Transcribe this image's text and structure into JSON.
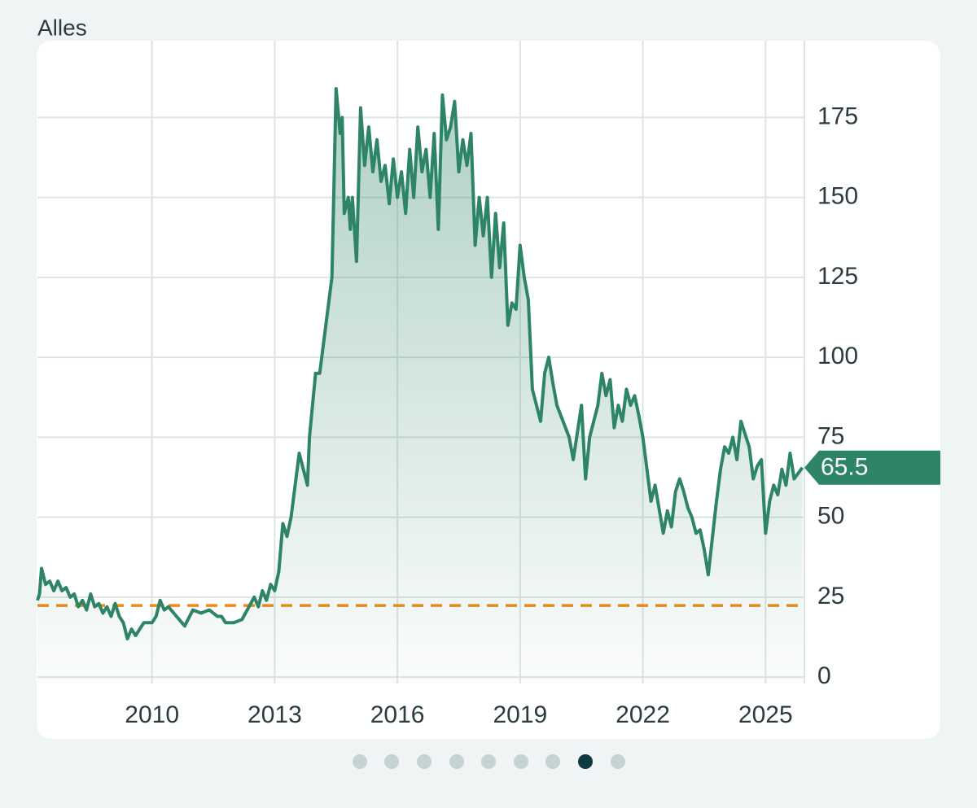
{
  "chart_data": {
    "type": "line",
    "title": "Alles",
    "x": [
      2007.2,
      2007.25,
      2007.3,
      2007.4,
      2007.5,
      2007.6,
      2007.7,
      2007.8,
      2007.9,
      2008.0,
      2008.1,
      2008.2,
      2008.3,
      2008.4,
      2008.5,
      2008.6,
      2008.7,
      2008.8,
      2008.9,
      2009.0,
      2009.1,
      2009.2,
      2009.3,
      2009.4,
      2009.5,
      2009.6,
      2009.8,
      2010.0,
      2010.1,
      2010.2,
      2010.3,
      2010.4,
      2010.6,
      2010.8,
      2011.0,
      2011.2,
      2011.4,
      2011.6,
      2011.7,
      2011.8,
      2012.0,
      2012.2,
      2012.5,
      2012.6,
      2012.7,
      2012.8,
      2012.9,
      2013.0,
      2013.1,
      2013.2,
      2013.3,
      2013.4,
      2013.6,
      2013.7,
      2013.8,
      2013.85,
      2014.0,
      2014.1,
      2014.3,
      2014.4,
      2014.5,
      2014.6,
      2014.65,
      2014.7,
      2014.8,
      2014.85,
      2014.9,
      2015.0,
      2015.1,
      2015.2,
      2015.3,
      2015.4,
      2015.5,
      2015.6,
      2015.7,
      2015.8,
      2015.9,
      2016.0,
      2016.1,
      2016.2,
      2016.3,
      2016.4,
      2016.5,
      2016.6,
      2016.7,
      2016.8,
      2016.9,
      2017.0,
      2017.1,
      2017.2,
      2017.3,
      2017.4,
      2017.5,
      2017.6,
      2017.7,
      2017.8,
      2017.9,
      2018.0,
      2018.1,
      2018.2,
      2018.3,
      2018.4,
      2018.5,
      2018.6,
      2018.7,
      2018.8,
      2018.9,
      2019.0,
      2019.1,
      2019.2,
      2019.3,
      2019.5,
      2019.6,
      2019.7,
      2019.8,
      2019.9,
      2020.2,
      2020.3,
      2020.5,
      2020.6,
      2020.7,
      2020.9,
      2021.0,
      2021.1,
      2021.2,
      2021.3,
      2021.4,
      2021.5,
      2021.6,
      2021.7,
      2021.8,
      2021.9,
      2022.0,
      2022.1,
      2022.2,
      2022.3,
      2022.5,
      2022.6,
      2022.7,
      2022.8,
      2022.9,
      2023.0,
      2023.1,
      2023.2,
      2023.3,
      2023.4,
      2023.5,
      2023.6,
      2023.8,
      2023.9,
      2024.0,
      2024.1,
      2024.2,
      2024.3,
      2024.4,
      2024.6,
      2024.7,
      2024.8,
      2024.9,
      2025.0,
      2025.1,
      2025.2,
      2025.3,
      2025.4,
      2025.5,
      2025.6,
      2025.7,
      2025.9
    ],
    "series": [
      {
        "color": "#2e8466",
        "values": [
          24,
          26,
          34,
          29,
          30,
          27,
          30,
          27,
          28,
          25,
          26,
          22,
          24,
          21,
          26,
          22,
          23,
          20,
          22,
          19,
          23,
          19,
          17,
          12,
          15,
          13,
          17,
          17,
          19,
          24,
          21,
          22,
          19,
          16,
          21,
          20,
          21,
          19,
          19,
          17,
          17,
          18,
          25,
          22,
          27,
          24,
          29,
          27,
          33,
          48,
          44,
          50,
          70,
          65,
          60,
          75,
          95,
          95,
          115,
          125,
          184,
          170,
          175,
          145,
          150,
          140,
          150,
          130,
          178,
          160,
          172,
          158,
          168,
          155,
          160,
          148,
          162,
          150,
          158,
          145,
          165,
          150,
          172,
          158,
          165,
          150,
          170,
          140,
          182,
          168,
          172,
          180,
          158,
          168,
          160,
          170,
          135,
          150,
          138,
          150,
          125,
          145,
          128,
          142,
          110,
          117,
          115,
          135,
          125,
          118,
          90,
          80,
          95,
          100,
          92,
          85,
          75,
          68,
          85,
          62,
          75,
          85,
          95,
          88,
          93,
          78,
          85,
          80,
          90,
          85,
          88,
          82,
          75,
          65,
          55,
          60,
          45,
          52,
          47,
          58,
          62,
          58,
          53,
          50,
          45,
          46,
          40,
          32,
          55,
          65,
          72,
          70,
          75,
          68,
          80,
          72,
          62,
          66,
          68,
          45,
          55,
          60,
          57,
          65,
          60,
          70,
          62,
          65.5
        ]
      }
    ],
    "last_value": 65.5,
    "reference_line": {
      "value": 22.4,
      "color": "#f08a1c"
    },
    "xlim": [
      2007.2,
      2025.95
    ],
    "xticks": [
      2010,
      2013,
      2016,
      2019,
      2022,
      2025
    ],
    "ylim": [
      -2,
      199
    ],
    "yticks": [
      0,
      25,
      50,
      75,
      100,
      125,
      150,
      175
    ],
    "grid": true
  }
}
